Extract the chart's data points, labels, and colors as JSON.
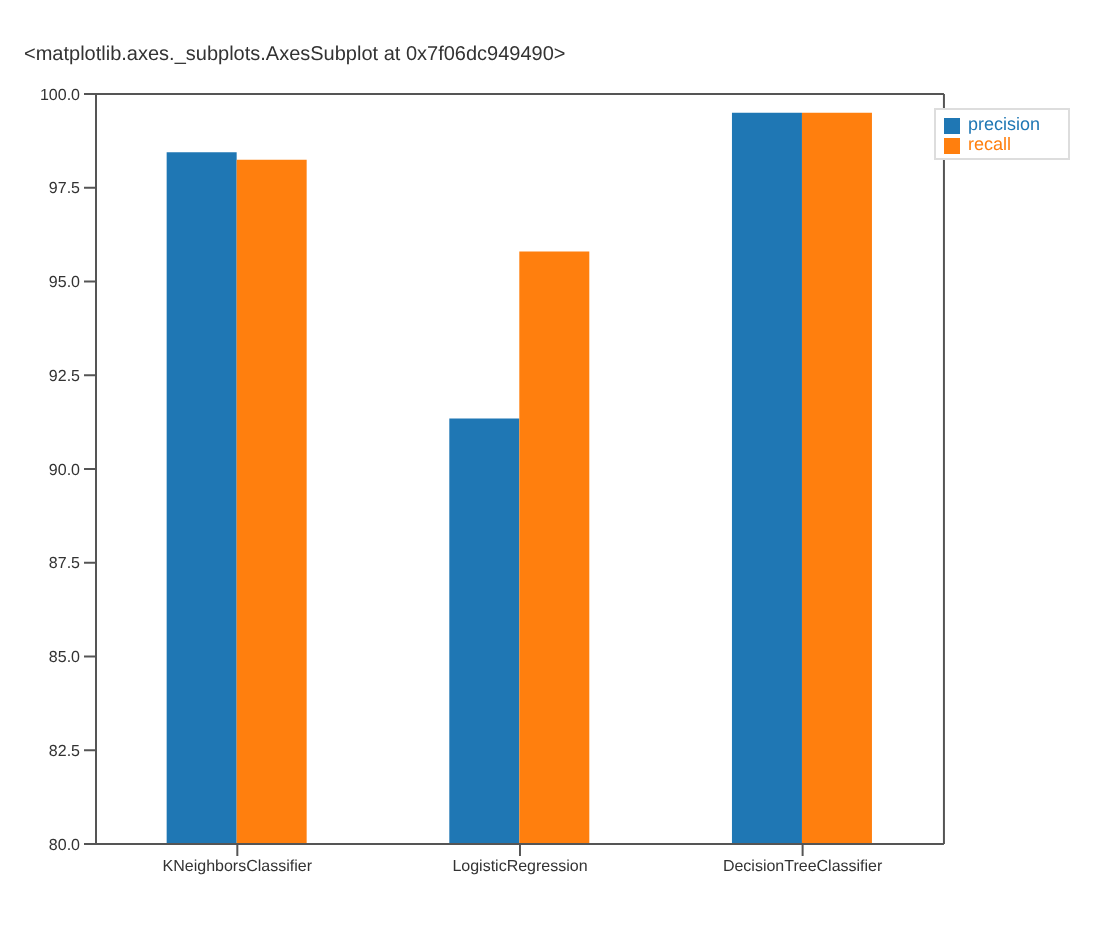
{
  "chart_data": {
    "type": "bar",
    "title": "<matplotlib.axes._subplots.AxesSubplot at 0x7f06dc949490>",
    "categories": [
      "KNeighborsClassifier",
      "LogisticRegression",
      "DecisionTreeClassifier"
    ],
    "series": [
      {
        "name": "precision",
        "color": "#1f77b4",
        "values": [
          98.45,
          91.35,
          99.5
        ]
      },
      {
        "name": "recall",
        "color": "#ff7f0e",
        "values": [
          98.25,
          95.8,
          99.5
        ]
      }
    ],
    "ylim": [
      80,
      100
    ],
    "yticks": [
      {
        "value": 80,
        "label": "80.0"
      },
      82.5,
      {
        "value": 85,
        "label": "85.0"
      },
      87.5,
      {
        "value": 90,
        "label": "90.0"
      },
      92.5,
      {
        "value": 95,
        "label": "95.0"
      },
      97.5,
      {
        "value": 100,
        "label": "100.0"
      }
    ],
    "grid": false,
    "legend": "top right"
  }
}
